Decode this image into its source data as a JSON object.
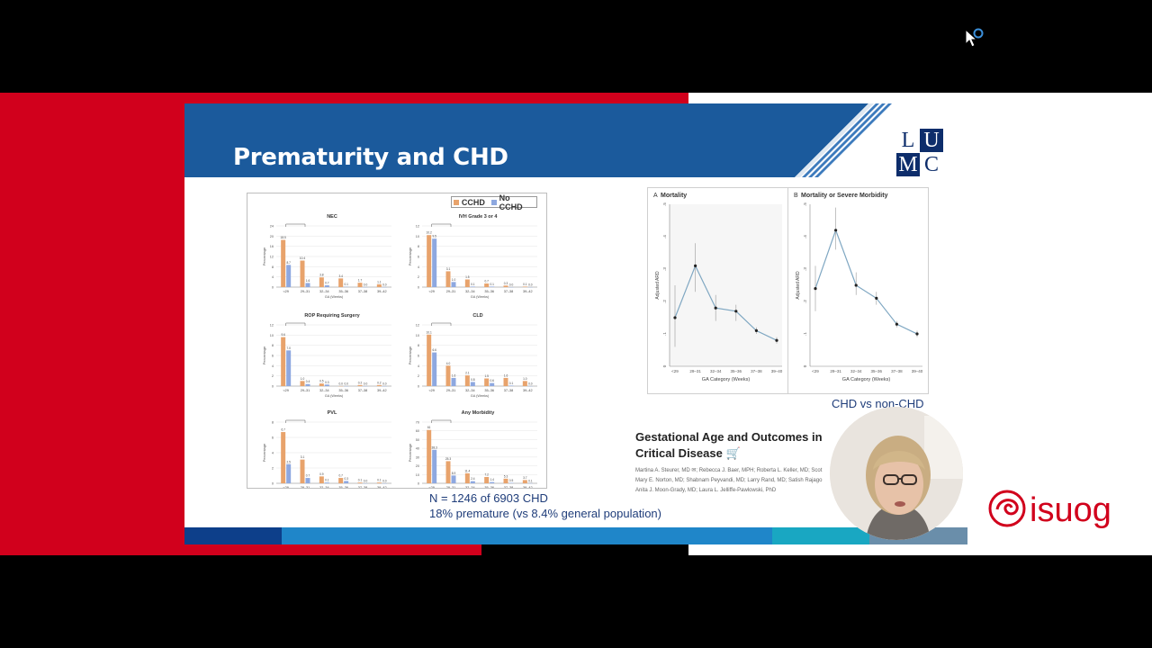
{
  "slide": {
    "title": "Prematurity and CHD",
    "logo_lumc": [
      "L",
      "U",
      "M",
      "C"
    ],
    "stat_line_1": "N = 1246 of 6903 CHD",
    "stat_line_2": "18% premature (vs 8.4% general population)",
    "comparison_label": "CHD vs non-CHD",
    "paper_title": "Gestational Age and Outcomes in Critical Disease",
    "paper_authors_line1": "Martina A. Steurer, MD ✉; Rebecca J. Baer, MPH; Roberta L. Keller, MD; Scot",
    "paper_authors_line2": "Mary E. Norton, MD; Shabnam Peyvandi, MD; Larry Rand, MD; Satish Rajago",
    "paper_authors_line3": "Anita J. Moon-Grady, MD; Laura L. Jelliffe-Pawlowski, PhD"
  },
  "colors": {
    "brand_red": "#d1001c",
    "title_blue": "#1b5a9c",
    "navy": "#0d2d6b",
    "cchd_bar": "#e8a36c",
    "no_cchd_bar": "#8ea8e0",
    "line_series": "#7fa7c2",
    "isuog_red": "#d1001c"
  },
  "brand": {
    "isuog": "isuog"
  },
  "bar_figure": {
    "legend": [
      "CCHD",
      "No CCHD"
    ],
    "categories": [
      "<29",
      "29–31",
      "32–34",
      "35–36",
      "37–38",
      "39–42"
    ],
    "xlabel": "GA (Weeks)",
    "ylabel": "Percentage",
    "panels": [
      {
        "title": "NEC",
        "ymax": 24,
        "yticks": [
          "24",
          "20",
          "16",
          "12",
          "8",
          "4",
          "0"
        ],
        "cchd": [
          18.5,
          10.4,
          3.8,
          3.4,
          1.7,
          1.1
        ],
        "nocchd": [
          8.7,
          1.6,
          0.7,
          0.1,
          0.0,
          0.0
        ],
        "cchd_labels": [
          "18.5",
          "10.4",
          "3.8",
          "3.4",
          "1.7",
          "1.1"
        ],
        "nocchd_labels": [
          "8.7",
          "1.6",
          "0.7",
          "0.1",
          "0.0",
          "0.0"
        ]
      },
      {
        "title": "IVH Grade 3 or 4",
        "ymax": 12,
        "yticks": [
          "12",
          "10",
          "8",
          "6",
          "4",
          "2",
          "0"
        ],
        "cchd": [
          10.2,
          3.1,
          1.5,
          0.7,
          0.3,
          0.1
        ],
        "nocchd": [
          9.5,
          1.0,
          0.1,
          0.1,
          0.0,
          0.0
        ],
        "cchd_labels": [
          "10.2",
          "3.1",
          "1.5",
          "0.7",
          "0.3",
          "0.1"
        ],
        "nocchd_labels": [
          "9.5",
          "1.0",
          "0.1",
          "0.1",
          "0.0",
          "0.0"
        ]
      },
      {
        "title": "ROP Requiring Surgery",
        "ymax": 12,
        "yticks": [
          "12",
          "10",
          "8",
          "6",
          "4",
          "2",
          "0"
        ],
        "cchd": [
          9.6,
          1.0,
          0.5,
          0.0,
          0.2,
          0.2
        ],
        "nocchd": [
          7.0,
          0.4,
          0.3,
          0.0,
          0.0,
          0.0
        ],
        "cchd_labels": [
          "9.6",
          "1.0",
          "0.5",
          "0.0",
          "0.2",
          "0.2"
        ],
        "nocchd_labels": [
          "7.0",
          "0.4",
          "0.3",
          "0.0",
          "0.0",
          "0.0"
        ]
      },
      {
        "title": "CLD",
        "ymax": 12,
        "yticks": [
          "12",
          "10",
          "8",
          "6",
          "4",
          "2",
          "0"
        ],
        "cchd": [
          10.1,
          4.0,
          2.1,
          1.5,
          1.6,
          1.0
        ],
        "nocchd": [
          6.6,
          1.6,
          0.8,
          0.6,
          0.1,
          0.0
        ],
        "cchd_labels": [
          "10.1",
          "4.0",
          "2.1",
          "1.5",
          "1.6",
          "1.0"
        ],
        "nocchd_labels": [
          "6.6",
          "1.6",
          "0.8",
          "0.6",
          "0.1",
          "0.0"
        ]
      },
      {
        "title": "PVL",
        "ymax": 8,
        "yticks": [
          "8",
          "6",
          "4",
          "2",
          "0"
        ],
        "cchd": [
          6.7,
          3.1,
          0.9,
          0.7,
          0.1,
          0.1
        ],
        "nocchd": [
          2.5,
          0.7,
          0.1,
          0.3,
          0.0,
          0.0
        ],
        "cchd_labels": [
          "6.7",
          "3.1",
          "0.9",
          "0.7",
          "0.1",
          "0.1"
        ],
        "nocchd_labels": [
          "2.5",
          "0.7",
          "0.1",
          "0.3",
          "0.0",
          "0.0"
        ]
      },
      {
        "title": "Any Morbidity",
        "ymax": 70,
        "yticks": [
          "70",
          "60",
          "50",
          "40",
          "30",
          "20",
          "10",
          "0"
        ],
        "cchd": [
          61,
          25.3,
          11.4,
          7.2,
          5.3,
          3.7
        ],
        "nocchd": [
          38.3,
          8.9,
          2.4,
          1.4,
          0.5,
          0.1
        ],
        "cchd_labels": [
          "61",
          "25.3",
          "11.4",
          "7.2",
          "5.3",
          "3.7"
        ],
        "nocchd_labels": [
          "38.3",
          "8.9",
          "2.4",
          "1.4",
          "0.5",
          "0.1"
        ]
      }
    ]
  },
  "chart_data": [
    {
      "type": "line",
      "title": "Mortality",
      "panel_letter": "A",
      "xlabel": "GA Category (Weeks)",
      "ylabel": "Adjusted ARD",
      "categories": [
        "<29",
        "29–31",
        "32–34",
        "35–36",
        "37–38",
        "39–40"
      ],
      "values": [
        0.15,
        0.31,
        0.18,
        0.17,
        0.11,
        0.08
      ],
      "ci_low": [
        0.06,
        0.23,
        0.14,
        0.14,
        0.1,
        0.07
      ],
      "ci_high": [
        0.25,
        0.38,
        0.22,
        0.19,
        0.12,
        0.09
      ],
      "ylim": [
        0,
        0.5
      ],
      "yticks": [
        "0",
        ".1",
        ".2",
        ".3",
        ".4",
        ".5"
      ]
    },
    {
      "type": "line",
      "title": "Mortality or Severe Morbidity",
      "panel_letter": "B",
      "xlabel": "GA Category (Weeks)",
      "ylabel": "Adjusted ARD",
      "categories": [
        "<29",
        "29–31",
        "32–34",
        "35–36",
        "37–38",
        "39–40"
      ],
      "values": [
        0.24,
        0.42,
        0.25,
        0.21,
        0.13,
        0.1
      ],
      "ci_low": [
        0.17,
        0.36,
        0.22,
        0.19,
        0.12,
        0.09
      ],
      "ci_high": [
        0.31,
        0.49,
        0.29,
        0.23,
        0.14,
        0.11
      ],
      "ylim": [
        0,
        0.5
      ],
      "yticks": [
        "0",
        ".1",
        ".2",
        ".3",
        ".4",
        ".5"
      ]
    }
  ]
}
